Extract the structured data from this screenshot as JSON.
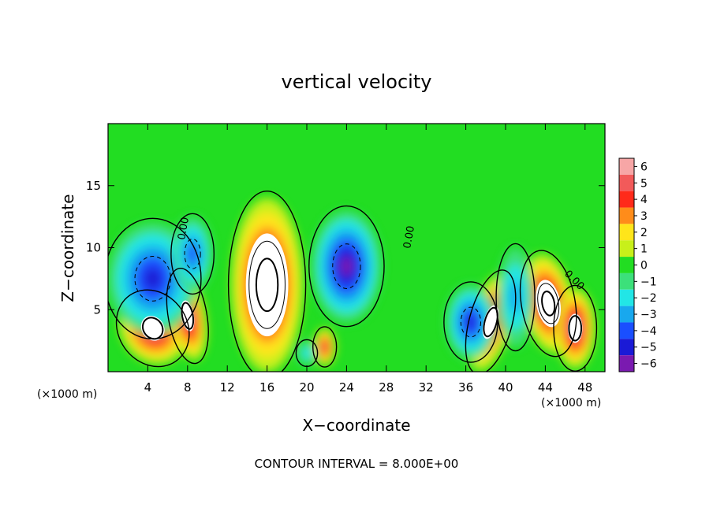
{
  "chart_data": {
    "type": "heatmap",
    "title": "vertical velocity",
    "xlabel": "X−coordinate",
    "ylabel": "Z−coordinate",
    "x_unit_left": "(×1000 m)",
    "x_unit_right": "(×1000 m)",
    "xlim": [
      0,
      50
    ],
    "ylim": [
      0,
      20
    ],
    "x_ticks": [
      4,
      8,
      12,
      16,
      20,
      24,
      28,
      32,
      36,
      40,
      44,
      48
    ],
    "y_ticks": [
      5,
      10,
      15
    ],
    "footer": "CONTOUR INTERVAL = 8.000E+00",
    "colorbar": {
      "levels": [
        6,
        5,
        4,
        3,
        2,
        1,
        0,
        -1,
        -2,
        -3,
        -4,
        -5,
        -6
      ],
      "labels": [
        "6",
        "5",
        "4",
        "3",
        "2",
        "1",
        "0",
        "−1",
        "−2",
        "−3",
        "−4",
        "−5",
        "−6"
      ],
      "colors": [
        "#f7a6a6",
        "#f25a5a",
        "#ff2a1a",
        "#ff8c1a",
        "#ffe51a",
        "#c8f01a",
        "#22dd22",
        "#3ce07a",
        "#22e6e6",
        "#18a8ee",
        "#1a4fff",
        "#1a1ad6",
        "#7a1ab0"
      ],
      "background": "#22dd22"
    },
    "contour_labels": [
      {
        "text": "0.00",
        "x": 7.9,
        "y": 11.5,
        "rotate": -80
      },
      {
        "text": "0.00",
        "x": 30.6,
        "y": 10.8,
        "rotate": -80
      },
      {
        "text": "0.00",
        "x": 46.7,
        "y": 7.2,
        "rotate": 45
      }
    ],
    "features": [
      {
        "type": "up",
        "x": 4.5,
        "z": 3.5,
        "rx": 3.2,
        "rz": 3.0,
        "rot": -35,
        "amp": 8
      },
      {
        "type": "up",
        "x": 8.0,
        "z": 4.5,
        "rx": 1.8,
        "rz": 3.6,
        "rot": -10,
        "amp": 7
      },
      {
        "type": "up",
        "x": 16.0,
        "z": 7.0,
        "rx": 3.6,
        "rz": 7.0,
        "rot": 0,
        "amp": 14
      },
      {
        "type": "up",
        "x": 21.8,
        "z": 2.0,
        "rx": 1.1,
        "rz": 1.5,
        "rot": 0,
        "amp": 5
      },
      {
        "type": "up",
        "x": 38.5,
        "z": 4.0,
        "rx": 2.0,
        "rz": 4.0,
        "rot": 15,
        "amp": 8
      },
      {
        "type": "up",
        "x": 44.3,
        "z": 5.5,
        "rx": 2.5,
        "rz": 4.0,
        "rot": -10,
        "amp": 11
      },
      {
        "type": "up",
        "x": 47.0,
        "z": 3.5,
        "rx": 2.0,
        "rz": 3.2,
        "rot": 0,
        "amp": 9
      },
      {
        "type": "down",
        "x": 4.5,
        "z": 7.5,
        "rx": 4.5,
        "rz": 4.5,
        "rot": 0,
        "amp": -5
      },
      {
        "type": "down",
        "x": 8.5,
        "z": 9.5,
        "rx": 2.0,
        "rz": 3.0,
        "rot": 0,
        "amp": -4
      },
      {
        "type": "down",
        "x": 24.0,
        "z": 8.5,
        "rx": 3.5,
        "rz": 4.5,
        "rot": 0,
        "amp": -6
      },
      {
        "type": "down",
        "x": 36.5,
        "z": 4.0,
        "rx": 2.5,
        "rz": 3.0,
        "rot": 0,
        "amp": -5
      },
      {
        "type": "down",
        "x": 41.0,
        "z": 6.0,
        "rx": 1.8,
        "rz": 4.0,
        "rot": 0,
        "amp": -3
      },
      {
        "type": "down",
        "x": 20.0,
        "z": 1.5,
        "rx": 1.0,
        "rz": 1.0,
        "rot": 0,
        "amp": -2
      }
    ]
  }
}
